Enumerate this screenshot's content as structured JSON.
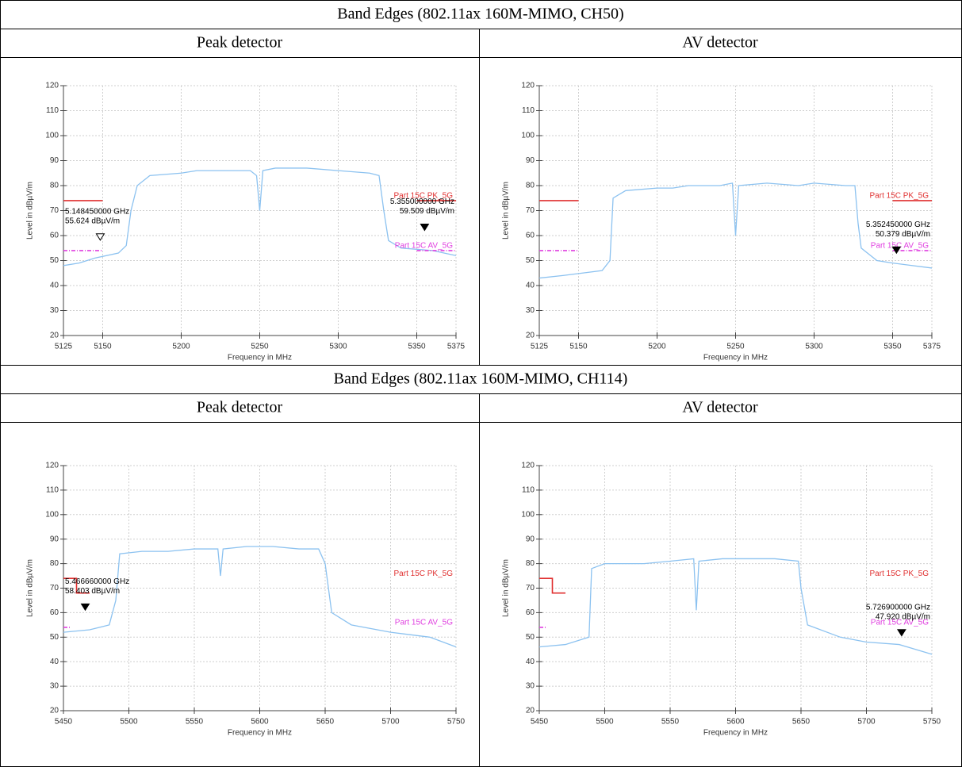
{
  "sections": [
    {
      "title": "Band Edges (802.11ax 160M-MIMO, CH50)",
      "columns": [
        "Peak detector",
        "AV detector"
      ]
    },
    {
      "title": "Band Edges (802.11ax 160M-MIMO, CH114)",
      "columns": [
        "Peak detector",
        "AV detector"
      ]
    }
  ],
  "chart_data": [
    {
      "type": "line",
      "xlabel": "Frequency in MHz",
      "ylabel": "Level in dBµV/m",
      "xlim": [
        5125,
        5375
      ],
      "xticks": [
        5125,
        5150,
        5200,
        5250,
        5300,
        5350,
        5375
      ],
      "ylim": [
        20,
        120
      ],
      "yticks": [
        20,
        30,
        40,
        50,
        60,
        70,
        80,
        90,
        100,
        110,
        120
      ],
      "grid": true,
      "series": [
        {
          "color": "#8cc2f0",
          "x": [
            5125,
            5135,
            5145,
            5160,
            5165,
            5168,
            5172,
            5180,
            5200,
            5210,
            5220,
            5230,
            5244,
            5248,
            5250,
            5252,
            5260,
            5280,
            5300,
            5320,
            5326,
            5329,
            5332,
            5340,
            5360,
            5375
          ],
          "values": [
            48,
            49,
            51,
            53,
            56,
            70,
            80,
            84,
            85,
            86,
            86,
            86,
            86,
            84,
            70,
            86,
            87,
            87,
            86,
            85,
            84,
            70,
            58,
            55,
            54,
            52
          ]
        },
        {
          "name": "Part 15C PK_5G",
          "color": "#e03030",
          "x": [
            5125,
            5150,
            5250,
            5350,
            5375
          ],
          "values": [
            74,
            74,
            null,
            74,
            74
          ]
        },
        {
          "name": "Part 15C AV_5G",
          "color": "#e040e0",
          "dashed": true,
          "x": [
            5125,
            5150,
            5250,
            5350,
            5375
          ],
          "values": [
            54,
            54,
            null,
            54,
            54
          ]
        }
      ],
      "markers": [
        {
          "x": 5148.45,
          "y": 55.624,
          "filled": false,
          "label": [
            "5.148450000 GHz",
            "55.624 dBµV/m"
          ]
        },
        {
          "x": 5355,
          "y": 59.509,
          "filled": true,
          "label": [
            "5.355000000 GHz",
            "59.509 dBµV/m"
          ]
        }
      ]
    },
    {
      "type": "line",
      "xlabel": "Frequency in MHz",
      "ylabel": "Level in dBµV/m",
      "xlim": [
        5125,
        5375
      ],
      "xticks": [
        5125,
        5150,
        5200,
        5250,
        5300,
        5350,
        5375
      ],
      "ylim": [
        20,
        120
      ],
      "yticks": [
        20,
        30,
        40,
        50,
        60,
        70,
        80,
        90,
        100,
        110,
        120
      ],
      "grid": true,
      "series": [
        {
          "color": "#8cc2f0",
          "x": [
            5125,
            5140,
            5165,
            5170,
            5172,
            5180,
            5200,
            5210,
            5220,
            5240,
            5248,
            5250,
            5252,
            5270,
            5290,
            5300,
            5320,
            5326,
            5328,
            5330,
            5340,
            5350,
            5375
          ],
          "values": [
            43,
            44,
            46,
            50,
            75,
            78,
            79,
            79,
            80,
            80,
            81,
            60,
            80,
            81,
            80,
            81,
            80,
            80,
            65,
            55,
            50,
            49,
            47
          ]
        },
        {
          "name": "Part 15C PK_5G",
          "color": "#e03030",
          "x": [
            5125,
            5150,
            5250,
            5350,
            5375
          ],
          "values": [
            74,
            74,
            null,
            74,
            74
          ]
        },
        {
          "name": "Part 15C AV_5G",
          "color": "#e040e0",
          "dashed": true,
          "x": [
            5125,
            5150,
            5250,
            5350,
            5375
          ],
          "values": [
            54,
            54,
            null,
            54,
            54
          ]
        }
      ],
      "markers": [
        {
          "x": 5352.45,
          "y": 50.379,
          "filled": true,
          "label": [
            "5.352450000 GHz",
            "50.379 dBµV/m"
          ]
        }
      ]
    },
    {
      "type": "line",
      "xlabel": "Frequency in MHz",
      "ylabel": "Level in dBµV/m",
      "xlim": [
        5450,
        5750
      ],
      "xticks": [
        5450,
        5500,
        5550,
        5600,
        5650,
        5700,
        5750
      ],
      "ylim": [
        20,
        120
      ],
      "yticks": [
        20,
        30,
        40,
        50,
        60,
        70,
        80,
        90,
        100,
        110,
        120
      ],
      "grid": true,
      "series": [
        {
          "color": "#8cc2f0",
          "x": [
            5450,
            5470,
            5485,
            5490,
            5493,
            5510,
            5530,
            5550,
            5568,
            5570,
            5572,
            5590,
            5610,
            5630,
            5645,
            5650,
            5655,
            5670,
            5700,
            5730,
            5750
          ],
          "values": [
            52,
            53,
            55,
            65,
            84,
            85,
            85,
            86,
            86,
            75,
            86,
            87,
            87,
            86,
            86,
            80,
            60,
            55,
            52,
            50,
            46
          ]
        },
        {
          "name": "Part 15C PK_5G",
          "color": "#e03030",
          "x": [
            5450,
            5460,
            5460,
            5470
          ],
          "values": [
            74,
            74,
            68,
            68
          ]
        },
        {
          "name": "Part 15C AV_5G",
          "color": "#e040e0",
          "dashed": true,
          "x": [
            5450,
            5455
          ],
          "values": [
            54,
            54
          ]
        }
      ],
      "markers": [
        {
          "x": 5466.66,
          "y": 58.403,
          "filled": true,
          "label": [
            "5.466660000 GHz",
            "58.403 dBµV/m"
          ]
        }
      ]
    },
    {
      "type": "line",
      "xlabel": "Frequency in MHz",
      "ylabel": "Level in dBµV/m",
      "xlim": [
        5450,
        5750
      ],
      "xticks": [
        5450,
        5500,
        5550,
        5600,
        5650,
        5700,
        5750
      ],
      "ylim": [
        20,
        120
      ],
      "yticks": [
        20,
        30,
        40,
        50,
        60,
        70,
        80,
        90,
        100,
        110,
        120
      ],
      "grid": true,
      "series": [
        {
          "color": "#8cc2f0",
          "x": [
            5450,
            5470,
            5488,
            5490,
            5500,
            5520,
            5530,
            5550,
            5568,
            5570,
            5572,
            5590,
            5610,
            5630,
            5648,
            5650,
            5655,
            5680,
            5700,
            5725,
            5750
          ],
          "values": [
            46,
            47,
            50,
            78,
            80,
            80,
            80,
            81,
            82,
            61,
            81,
            82,
            82,
            82,
            81,
            70,
            55,
            50,
            48,
            47,
            43
          ]
        },
        {
          "name": "Part 15C PK_5G",
          "color": "#e03030",
          "x": [
            5450,
            5460,
            5460,
            5470
          ],
          "values": [
            74,
            74,
            68,
            68
          ]
        },
        {
          "name": "Part 15C AV_5G",
          "color": "#e040e0",
          "dashed": true,
          "x": [
            5450,
            5455
          ],
          "values": [
            54,
            54
          ]
        }
      ],
      "markers": [
        {
          "x": 5726.9,
          "y": 47.92,
          "filled": true,
          "label": [
            "5.726900000 GHz",
            "47.920 dBµV/m"
          ]
        }
      ]
    }
  ]
}
